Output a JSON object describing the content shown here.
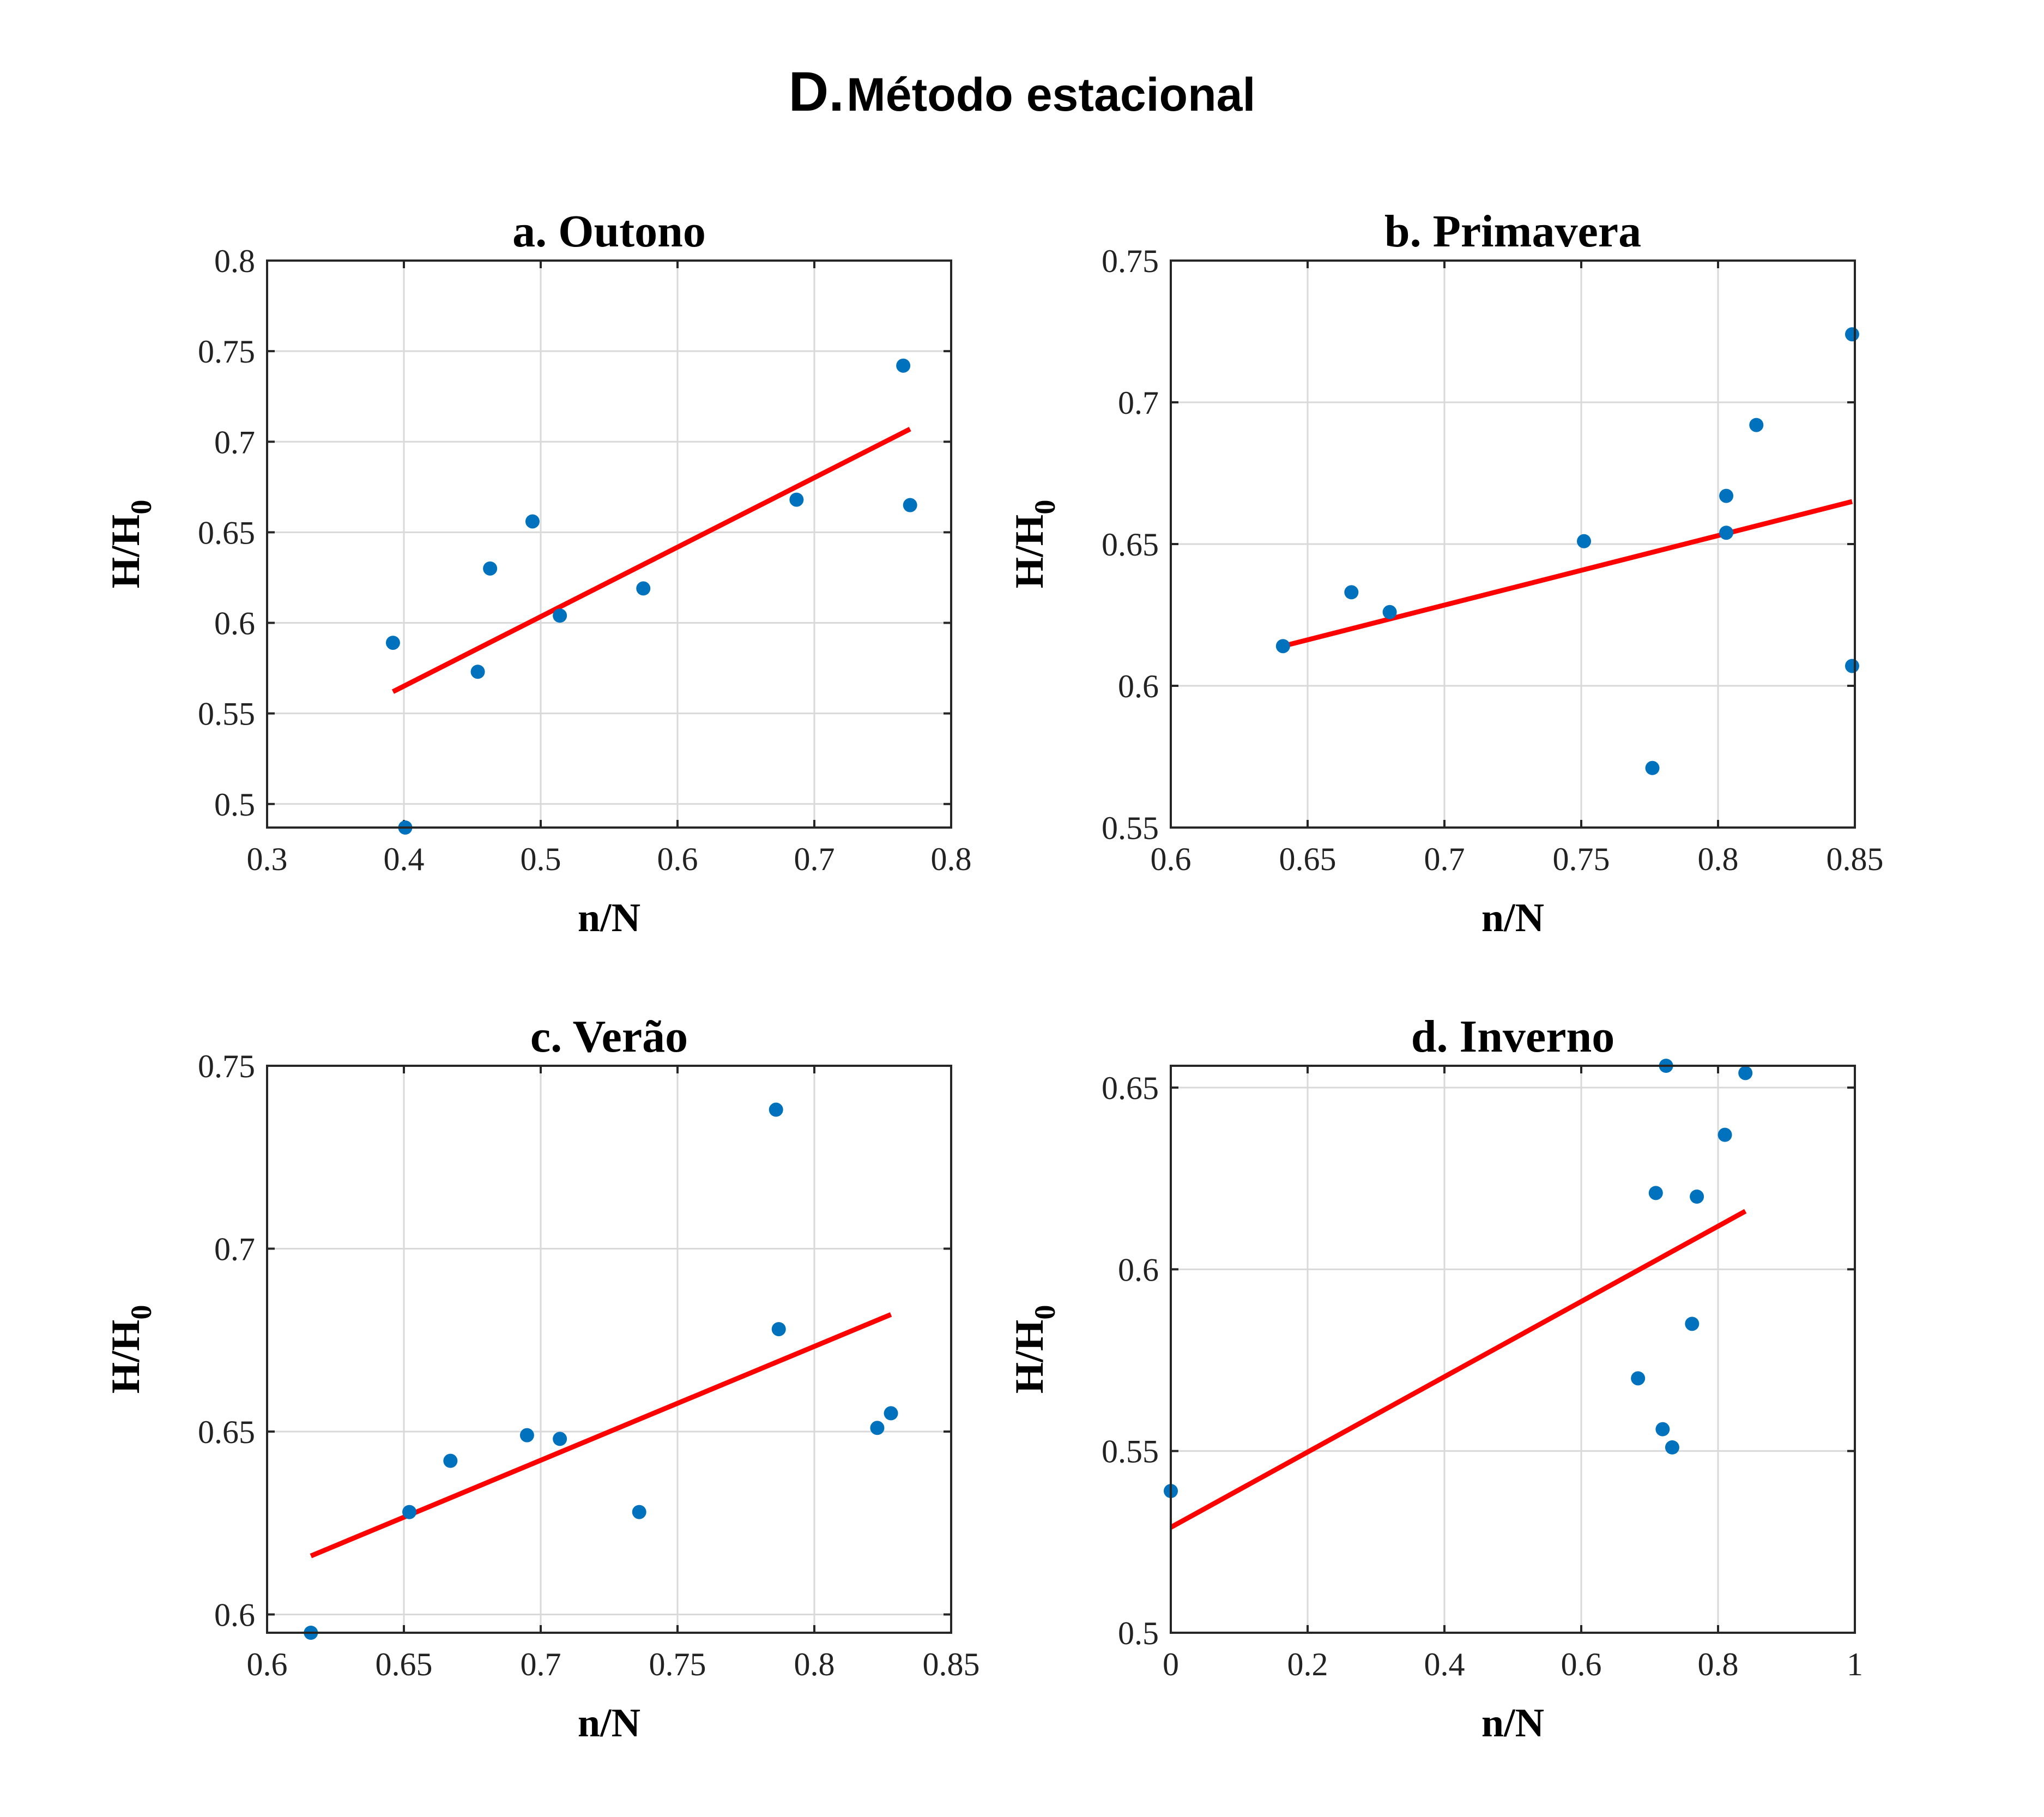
{
  "figure": {
    "panel_letter": "D.",
    "title": "Método estacional"
  },
  "colors": {
    "points": "#0072BD",
    "fit_line": "#FF0000"
  },
  "chart_data": [
    {
      "type": "scatter",
      "title": "a. Outono",
      "xlabel": "n/N",
      "ylabel_main": "H/H",
      "ylabel_sub": "0",
      "xlim": [
        0.3,
        0.8
      ],
      "ylim": [
        0.487,
        0.8
      ],
      "xticks": [
        0.3,
        0.4,
        0.5,
        0.6,
        0.7,
        0.8
      ],
      "xtick_labels": [
        "0.3",
        "0.4",
        "0.5",
        "0.6",
        "0.7",
        "0.8"
      ],
      "yticks": [
        0.5,
        0.55,
        0.6,
        0.65,
        0.7,
        0.75,
        0.8
      ],
      "ytick_labels": [
        "0.5",
        "0.55",
        "0.6",
        "0.65",
        "0.7",
        "0.75",
        "0.8"
      ],
      "grid": true,
      "points": [
        {
          "x": 0.392,
          "y": 0.589
        },
        {
          "x": 0.401,
          "y": 0.487
        },
        {
          "x": 0.454,
          "y": 0.573
        },
        {
          "x": 0.463,
          "y": 0.63
        },
        {
          "x": 0.494,
          "y": 0.656
        },
        {
          "x": 0.514,
          "y": 0.604
        },
        {
          "x": 0.575,
          "y": 0.619
        },
        {
          "x": 0.687,
          "y": 0.668
        },
        {
          "x": 0.765,
          "y": 0.742
        },
        {
          "x": 0.77,
          "y": 0.665
        }
      ],
      "fit": {
        "x": [
          0.392,
          0.77
        ],
        "y": [
          0.562,
          0.707
        ]
      }
    },
    {
      "type": "scatter",
      "title": "b. Primavera",
      "xlabel": "n/N",
      "ylabel_main": "H/H",
      "ylabel_sub": "0",
      "xlim": [
        0.6,
        0.85
      ],
      "ylim": [
        0.55,
        0.75
      ],
      "xticks": [
        0.6,
        0.65,
        0.7,
        0.75,
        0.8,
        0.85
      ],
      "xtick_labels": [
        "0.6",
        "0.65",
        "0.7",
        "0.75",
        "0.8",
        "0.85"
      ],
      "yticks": [
        0.55,
        0.6,
        0.65,
        0.7,
        0.75
      ],
      "ytick_labels": [
        "0.55",
        "0.6",
        "0.65",
        "0.7",
        "0.75"
      ],
      "grid": true,
      "points": [
        {
          "x": 0.641,
          "y": 0.614
        },
        {
          "x": 0.666,
          "y": 0.633
        },
        {
          "x": 0.68,
          "y": 0.626
        },
        {
          "x": 0.751,
          "y": 0.651
        },
        {
          "x": 0.776,
          "y": 0.571
        },
        {
          "x": 0.803,
          "y": 0.667
        },
        {
          "x": 0.803,
          "y": 0.654
        },
        {
          "x": 0.814,
          "y": 0.692
        },
        {
          "x": 0.849,
          "y": 0.724
        },
        {
          "x": 0.849,
          "y": 0.607
        }
      ],
      "fit": {
        "x": [
          0.641,
          0.849
        ],
        "y": [
          0.614,
          0.665
        ]
      }
    },
    {
      "type": "scatter",
      "title": "c. Verão",
      "xlabel": "n/N",
      "ylabel_main": "H/H",
      "ylabel_sub": "0",
      "xlim": [
        0.6,
        0.85
      ],
      "ylim": [
        0.595,
        0.75
      ],
      "xticks": [
        0.6,
        0.65,
        0.7,
        0.75,
        0.8,
        0.85
      ],
      "xtick_labels": [
        "0.6",
        "0.65",
        "0.7",
        "0.75",
        "0.8",
        "0.85"
      ],
      "yticks": [
        0.6,
        0.65,
        0.7,
        0.75
      ],
      "ytick_labels": [
        "0.6",
        "0.65",
        "0.7",
        "0.75"
      ],
      "grid": true,
      "points": [
        {
          "x": 0.616,
          "y": 0.595
        },
        {
          "x": 0.652,
          "y": 0.628
        },
        {
          "x": 0.667,
          "y": 0.642
        },
        {
          "x": 0.695,
          "y": 0.649
        },
        {
          "x": 0.707,
          "y": 0.648
        },
        {
          "x": 0.736,
          "y": 0.628
        },
        {
          "x": 0.786,
          "y": 0.738
        },
        {
          "x": 0.787,
          "y": 0.678
        },
        {
          "x": 0.823,
          "y": 0.651
        },
        {
          "x": 0.828,
          "y": 0.655
        }
      ],
      "fit": {
        "x": [
          0.616,
          0.828
        ],
        "y": [
          0.616,
          0.682
        ]
      }
    },
    {
      "type": "scatter",
      "title": "d. Inverno",
      "xlabel": "n/N",
      "ylabel_main": "H/H",
      "ylabel_sub": "0",
      "xlim": [
        0,
        1
      ],
      "ylim": [
        0.5,
        0.656
      ],
      "xticks": [
        0,
        0.2,
        0.4,
        0.6,
        0.8,
        1
      ],
      "xtick_labels": [
        "0",
        "0.2",
        "0.4",
        "0.6",
        "0.8",
        "1"
      ],
      "yticks": [
        0.5,
        0.55,
        0.6,
        0.65
      ],
      "ytick_labels": [
        "0.5",
        "0.55",
        "0.6",
        "0.65"
      ],
      "grid": true,
      "points": [
        {
          "x": 0.0,
          "y": 0.539
        },
        {
          "x": 0.683,
          "y": 0.57
        },
        {
          "x": 0.709,
          "y": 0.621
        },
        {
          "x": 0.719,
          "y": 0.556
        },
        {
          "x": 0.724,
          "y": 0.656
        },
        {
          "x": 0.733,
          "y": 0.551
        },
        {
          "x": 0.762,
          "y": 0.585
        },
        {
          "x": 0.769,
          "y": 0.62
        },
        {
          "x": 0.81,
          "y": 0.637
        },
        {
          "x": 0.84,
          "y": 0.654
        }
      ],
      "fit": {
        "x": [
          0.0,
          0.84
        ],
        "y": [
          0.529,
          0.616
        ]
      }
    }
  ]
}
